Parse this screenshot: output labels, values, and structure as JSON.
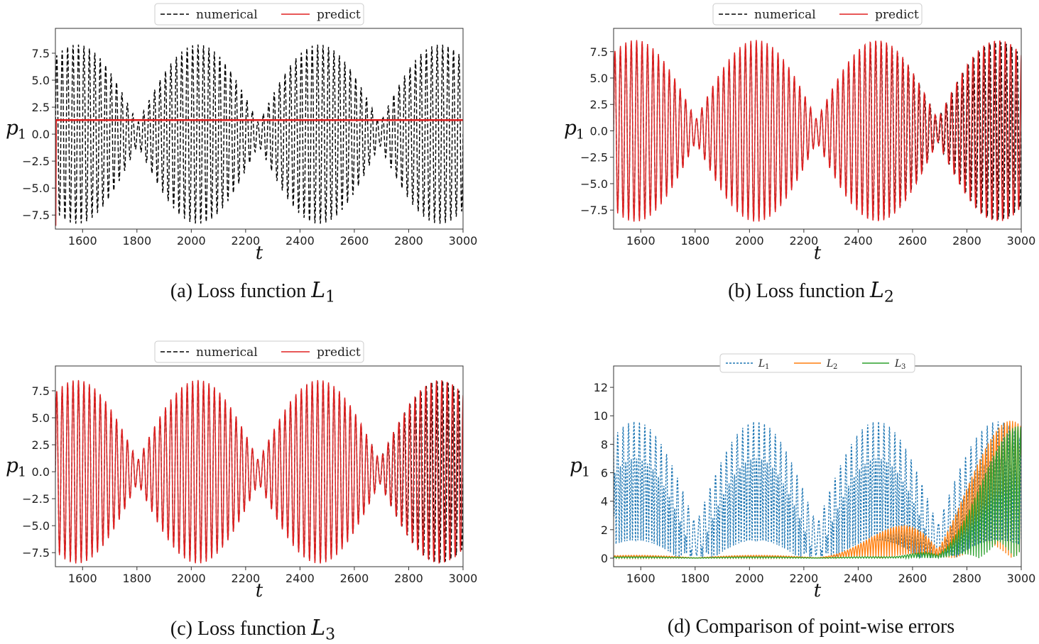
{
  "chart_data": [
    {
      "id": "a",
      "type": "line",
      "caption_prefix": "(a) Loss function",
      "caption_var": "L",
      "caption_sub": "1",
      "xlabel": "t",
      "ylabel": "p",
      "ylabel_sub": "1",
      "xlim": [
        1500,
        3000
      ],
      "ylim": [
        -8.8,
        9.8
      ],
      "x_ticks": [
        1600,
        1800,
        2000,
        2200,
        2400,
        2600,
        2800,
        3000
      ],
      "y_ticks": [
        -7.5,
        -5.0,
        -2.5,
        0.0,
        2.5,
        5.0,
        7.5
      ],
      "y_tick_labels": [
        "−7.5",
        "−5.0",
        "−2.5",
        "0.0",
        "2.5",
        "5.0",
        "7.5"
      ],
      "legend": {
        "position": "top-center",
        "entries": [
          "numerical",
          "predict"
        ]
      },
      "series": [
        {
          "name": "numerical",
          "style": "dashed",
          "color": "#000000",
          "model": "beat",
          "amplitude": 8.3,
          "period": 20.0,
          "envelope_period": 445,
          "envelope_peak": 2025
        },
        {
          "name": "predict",
          "style": "solid",
          "color": "#e02020",
          "model": "constant",
          "value": 1.3
        }
      ]
    },
    {
      "id": "b",
      "type": "line",
      "caption_prefix": "(b) Loss function",
      "caption_var": "L",
      "caption_sub": "2",
      "xlabel": "t",
      "ylabel": "p",
      "ylabel_sub": "1",
      "xlim": [
        1500,
        3000
      ],
      "ylim": [
        -9.3,
        9.7
      ],
      "x_ticks": [
        1600,
        1800,
        2000,
        2200,
        2400,
        2600,
        2800,
        3000
      ],
      "y_ticks": [
        -7.5,
        -5.0,
        -2.5,
        0.0,
        2.5,
        5.0,
        7.5
      ],
      "y_tick_labels": [
        "−7.5",
        "−5.0",
        "−2.5",
        "0.0",
        "2.5",
        "5.0",
        "7.5"
      ],
      "legend": {
        "position": "top-center",
        "entries": [
          "numerical",
          "predict"
        ]
      },
      "series": [
        {
          "name": "numerical",
          "style": "dashed",
          "color": "#000000",
          "model": "beat",
          "amplitude": 8.4,
          "period": 20.0,
          "envelope_period": 445,
          "envelope_peak": 2025
        },
        {
          "name": "predict",
          "style": "solid",
          "color": "#e02020",
          "model": "beat-drift",
          "amplitude": 8.6,
          "period": 20.0,
          "envelope_period": 445,
          "envelope_peak": 2025,
          "phase_drift_start": 2150
        }
      ]
    },
    {
      "id": "c",
      "type": "line",
      "caption_prefix": "(c) Loss function",
      "caption_var": "L",
      "caption_sub": "3",
      "xlabel": "t",
      "ylabel": "p",
      "ylabel_sub": "1",
      "xlim": [
        1500,
        3000
      ],
      "ylim": [
        -8.8,
        9.8
      ],
      "x_ticks": [
        1600,
        1800,
        2000,
        2200,
        2400,
        2600,
        2800,
        3000
      ],
      "y_ticks": [
        -7.5,
        -5.0,
        -2.5,
        0.0,
        2.5,
        5.0,
        7.5
      ],
      "y_tick_labels": [
        "−7.5",
        "−5.0",
        "−2.5",
        "0.0",
        "2.5",
        "5.0",
        "7.5"
      ],
      "legend": {
        "position": "top-center",
        "entries": [
          "numerical",
          "predict"
        ]
      },
      "series": [
        {
          "name": "numerical",
          "style": "dashed",
          "color": "#000000",
          "model": "beat",
          "amplitude": 8.4,
          "period": 20.0,
          "envelope_period": 445,
          "envelope_peak": 2025
        },
        {
          "name": "predict",
          "style": "solid",
          "color": "#e02020",
          "model": "beat-drift",
          "amplitude": 8.5,
          "period": 20.0,
          "envelope_period": 445,
          "envelope_peak": 2025,
          "phase_drift_start": 2500
        }
      ]
    },
    {
      "id": "d",
      "type": "line",
      "caption_prefix": "(d) Comparison of point-wise errors",
      "caption_var": "",
      "caption_sub": "",
      "xlabel": "t",
      "ylabel": "p",
      "ylabel_sub": "1",
      "xlim": [
        1500,
        3000
      ],
      "ylim": [
        -0.6,
        13.5
      ],
      "x_ticks": [
        1600,
        1800,
        2000,
        2200,
        2400,
        2600,
        2800,
        3000
      ],
      "y_ticks": [
        0,
        2,
        4,
        6,
        8,
        10,
        12
      ],
      "y_tick_labels": [
        "0",
        "2",
        "4",
        "6",
        "8",
        "10",
        "12"
      ],
      "legend": {
        "position": "top-center",
        "entries": [
          "L1",
          "L2",
          "L3"
        ]
      },
      "series": [
        {
          "name": "L",
          "sub": "1",
          "style": "dashed",
          "color": "#1f77b4",
          "model": "abs-error",
          "source": "a"
        },
        {
          "name": "L",
          "sub": "2",
          "style": "solid",
          "color": "#ff7f0e",
          "model": "abs-error",
          "source": "b"
        },
        {
          "name": "L",
          "sub": "3",
          "style": "solid",
          "color": "#2ca02c",
          "model": "abs-error",
          "source": "c"
        }
      ]
    }
  ]
}
